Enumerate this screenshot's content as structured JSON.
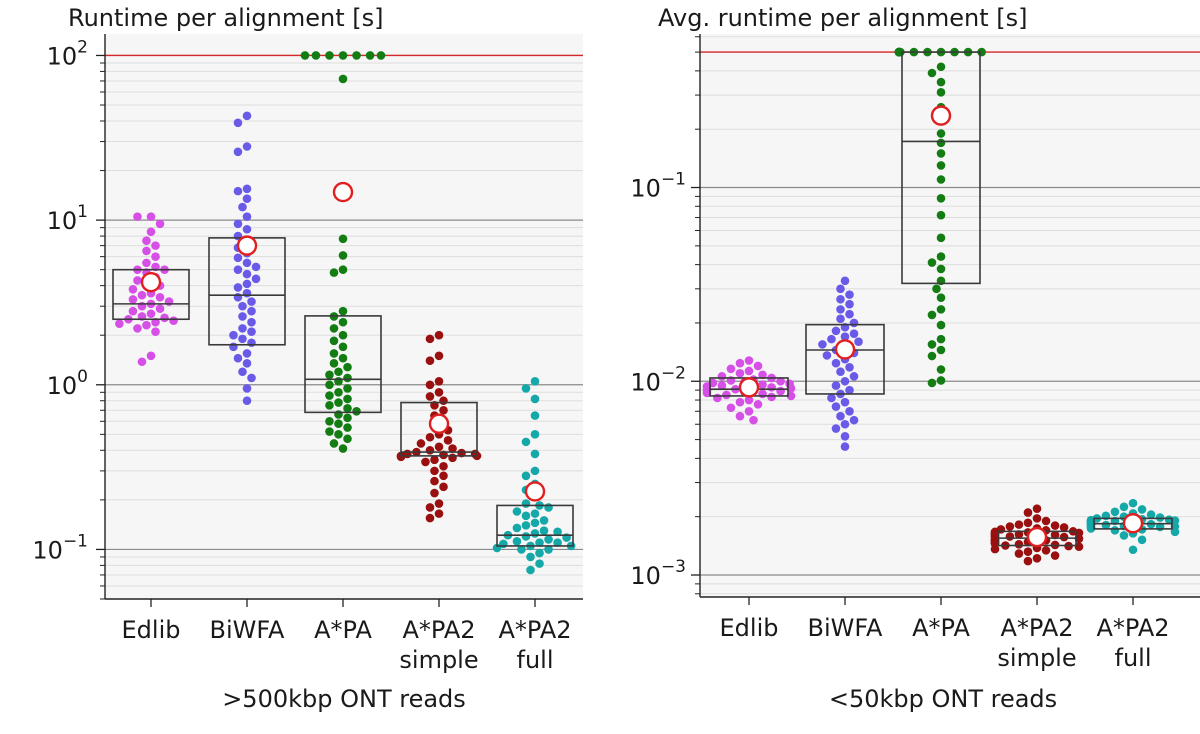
{
  "colors": {
    "Edlib": "#d64fe6",
    "BiWFA": "#6a5ae8",
    "A*PA": "#137d13",
    "A*PA2 simple": "#9a0f0f",
    "A*PA2 full": "#14a8a8",
    "mean_marker": "#e02020",
    "timeout_line": "#d62728",
    "panel_bg": "#f6f6f6"
  },
  "chart_data": [
    {
      "type": "scatter",
      "subtype": "swarm-with-box",
      "title": "Runtime per alignment [s]",
      "xlabel": ">500kbp ONT reads",
      "yscale": "log",
      "ylim": [
        0.05,
        135
      ],
      "yticks": [
        {
          "value": 0.1,
          "base": "10",
          "exp": "−1"
        },
        {
          "value": 1,
          "base": "10",
          "exp": "0"
        },
        {
          "value": 10,
          "base": "10",
          "exp": "1"
        },
        {
          "value": 100,
          "base": "10",
          "exp": "2"
        }
      ],
      "timeout": 100,
      "categories": [
        {
          "key": "Edlib",
          "label": [
            "Edlib"
          ],
          "box": {
            "q1": 2.5,
            "median": 3.1,
            "q3": 5.0
          },
          "mean": 4.2,
          "points": [
            1.38,
            1.5,
            2.1,
            2.2,
            2.3,
            2.35,
            2.4,
            2.45,
            2.5,
            2.55,
            2.6,
            2.7,
            2.8,
            2.9,
            3.0,
            3.1,
            3.2,
            3.3,
            3.4,
            3.5,
            3.6,
            3.8,
            4.0,
            4.1,
            4.3,
            4.5,
            4.8,
            5.0,
            5.0,
            5.2,
            5.5,
            6.0,
            6.5,
            7.0,
            7.5,
            8.5,
            9.5,
            10.5,
            10.5
          ]
        },
        {
          "key": "BiWFA",
          "label": [
            "BiWFA"
          ],
          "box": {
            "q1": 1.75,
            "median": 3.5,
            "q3": 7.8
          },
          "mean": 7.0,
          "points": [
            0.8,
            0.95,
            1.1,
            1.2,
            1.35,
            1.45,
            1.55,
            1.7,
            1.8,
            1.9,
            2.0,
            2.1,
            2.2,
            2.4,
            2.6,
            2.8,
            3.0,
            3.2,
            3.4,
            3.6,
            3.9,
            4.1,
            4.4,
            4.7,
            5.0,
            5.2,
            5.5,
            5.9,
            6.3,
            6.8,
            7.2,
            8.0,
            8.8,
            9.5,
            10.5,
            12.0,
            13.5,
            15.0,
            15.5,
            26.0,
            28.0,
            39.0,
            43.0
          ]
        },
        {
          "key": "A*PA",
          "label": [
            "A*PA"
          ],
          "box": {
            "q1": 0.68,
            "median": 1.08,
            "q3": 2.62
          },
          "mean": 14.8,
          "points": [
            0.41,
            0.44,
            0.47,
            0.5,
            0.52,
            0.55,
            0.58,
            0.6,
            0.63,
            0.66,
            0.69,
            0.72,
            0.75,
            0.78,
            0.82,
            0.86,
            0.9,
            0.95,
            1.0,
            1.05,
            1.1,
            1.15,
            1.2,
            1.28,
            1.35,
            1.45,
            1.55,
            1.7,
            1.85,
            2.0,
            2.2,
            2.4,
            2.6,
            2.8,
            4.8,
            5.0,
            6.1,
            7.7,
            72.0,
            100,
            100,
            100,
            100,
            100,
            100,
            100
          ]
        },
        {
          "key": "A*PA2 simple",
          "label": [
            "A*PA2",
            "simple"
          ],
          "box": {
            "q1": 0.37,
            "median": 0.39,
            "q3": 0.78
          },
          "mean": 0.58,
          "points": [
            0.155,
            0.165,
            0.18,
            0.19,
            0.22,
            0.24,
            0.26,
            0.28,
            0.3,
            0.32,
            0.34,
            0.35,
            0.36,
            0.365,
            0.37,
            0.37,
            0.375,
            0.38,
            0.38,
            0.385,
            0.39,
            0.4,
            0.41,
            0.42,
            0.44,
            0.46,
            0.48,
            0.5,
            0.53,
            0.56,
            0.6,
            0.65,
            0.7,
            0.75,
            0.8,
            0.85,
            0.9,
            1.0,
            1.05,
            1.4,
            1.5,
            1.9,
            2.0
          ]
        },
        {
          "key": "A*PA2 full",
          "label": [
            "A*PA2",
            "full"
          ],
          "box": {
            "q1": 0.105,
            "median": 0.122,
            "q3": 0.185
          },
          "mean": 0.225,
          "points": [
            0.075,
            0.082,
            0.09,
            0.095,
            0.1,
            0.1,
            0.102,
            0.105,
            0.105,
            0.108,
            0.11,
            0.11,
            0.112,
            0.115,
            0.118,
            0.12,
            0.122,
            0.125,
            0.128,
            0.13,
            0.135,
            0.14,
            0.145,
            0.15,
            0.16,
            0.165,
            0.17,
            0.18,
            0.185,
            0.19,
            0.21,
            0.23,
            0.25,
            0.28,
            0.3,
            0.38,
            0.45,
            0.5,
            0.65,
            0.82,
            0.95,
            1.05
          ]
        }
      ]
    },
    {
      "type": "scatter",
      "subtype": "swarm-with-box",
      "title": "Avg. runtime per alignment [s]",
      "xlabel": "<50kbp ONT reads",
      "yscale": "log",
      "ylim": [
        0.00077,
        0.62
      ],
      "yticks": [
        {
          "value": 0.001,
          "base": "10",
          "exp": "−3"
        },
        {
          "value": 0.01,
          "base": "10",
          "exp": "−2"
        },
        {
          "value": 0.1,
          "base": "10",
          "exp": "−1"
        }
      ],
      "timeout": 0.5,
      "categories": [
        {
          "key": "Edlib",
          "label": [
            "Edlib"
          ],
          "box": {
            "q1": 0.0084,
            "median": 0.0091,
            "q3": 0.0104
          },
          "mean": 0.0093,
          "points": [
            0.0063,
            0.0066,
            0.007,
            0.0073,
            0.0076,
            0.0078,
            0.008,
            0.0082,
            0.0083,
            0.0084,
            0.0085,
            0.0086,
            0.0087,
            0.0088,
            0.0089,
            0.009,
            0.009,
            0.0091,
            0.0091,
            0.0092,
            0.0093,
            0.0094,
            0.0095,
            0.0096,
            0.0097,
            0.0098,
            0.0099,
            0.01,
            0.0101,
            0.0102,
            0.0104,
            0.0106,
            0.0108,
            0.011,
            0.0113,
            0.0116,
            0.012,
            0.0124,
            0.0128
          ]
        },
        {
          "key": "BiWFA",
          "label": [
            "BiWFA"
          ],
          "box": {
            "q1": 0.0086,
            "median": 0.0145,
            "q3": 0.0196
          },
          "mean": 0.0146,
          "points": [
            0.0046,
            0.0052,
            0.0057,
            0.006,
            0.0063,
            0.0066,
            0.007,
            0.0074,
            0.0078,
            0.0082,
            0.0086,
            0.009,
            0.0095,
            0.01,
            0.0106,
            0.0112,
            0.0118,
            0.0124,
            0.013,
            0.0136,
            0.014,
            0.0145,
            0.015,
            0.0155,
            0.016,
            0.0165,
            0.017,
            0.0176,
            0.0182,
            0.019,
            0.02,
            0.021,
            0.0222,
            0.0235,
            0.025,
            0.0265,
            0.028,
            0.03,
            0.033
          ]
        },
        {
          "key": "A*PA",
          "label": [
            "A*PA"
          ],
          "box": {
            "q1": 0.032,
            "median": 0.173,
            "q3": 0.5
          },
          "mean": 0.235,
          "points": [
            0.0098,
            0.0101,
            0.0115,
            0.0135,
            0.0145,
            0.0155,
            0.0165,
            0.0195,
            0.022,
            0.0235,
            0.027,
            0.03,
            0.033,
            0.038,
            0.041,
            0.044,
            0.055,
            0.072,
            0.088,
            0.11,
            0.13,
            0.15,
            0.17,
            0.19,
            0.22,
            0.26,
            0.31,
            0.35,
            0.39,
            0.42,
            0.5,
            0.5,
            0.5,
            0.5,
            0.5,
            0.5,
            0.5,
            0.5,
            0.5,
            0.5,
            0.5,
            0.5,
            0.5,
            0.5,
            0.5,
            0.5,
            0.5
          ]
        },
        {
          "key": "A*PA2 simple",
          "label": [
            "A*PA2",
            "simple"
          ],
          "box": {
            "q1": 0.00142,
            "median": 0.00155,
            "q3": 0.00168
          },
          "mean": 0.00157,
          "points": [
            0.00118,
            0.00122,
            0.00126,
            0.00129,
            0.00132,
            0.00134,
            0.00136,
            0.00138,
            0.0014,
            0.00141,
            0.00142,
            0.00143,
            0.00144,
            0.00145,
            0.00146,
            0.00147,
            0.00148,
            0.00149,
            0.0015,
            0.00151,
            0.00152,
            0.00153,
            0.00154,
            0.00155,
            0.00156,
            0.00157,
            0.00158,
            0.00159,
            0.0016,
            0.00161,
            0.00162,
            0.00163,
            0.00164,
            0.00165,
            0.00166,
            0.00167,
            0.00168,
            0.0017,
            0.00172,
            0.00174,
            0.00176,
            0.00178,
            0.0018,
            0.00182,
            0.00186,
            0.0019,
            0.00196,
            0.0021,
            0.0022
          ]
        },
        {
          "key": "A*PA2 full",
          "label": [
            "A*PA2",
            "full"
          ],
          "box": {
            "q1": 0.00173,
            "median": 0.00184,
            "q3": 0.00196
          },
          "mean": 0.00185,
          "points": [
            0.00135,
            0.00152,
            0.0016,
            0.00164,
            0.00167,
            0.0017,
            0.00172,
            0.00174,
            0.00176,
            0.00177,
            0.00178,
            0.00179,
            0.0018,
            0.00181,
            0.00182,
            0.00183,
            0.00184,
            0.00185,
            0.00186,
            0.00187,
            0.00188,
            0.00189,
            0.0019,
            0.00191,
            0.00192,
            0.00193,
            0.00194,
            0.00196,
            0.00198,
            0.002,
            0.00202,
            0.00205,
            0.00208,
            0.00212,
            0.00218,
            0.00225,
            0.00235
          ]
        }
      ]
    }
  ]
}
